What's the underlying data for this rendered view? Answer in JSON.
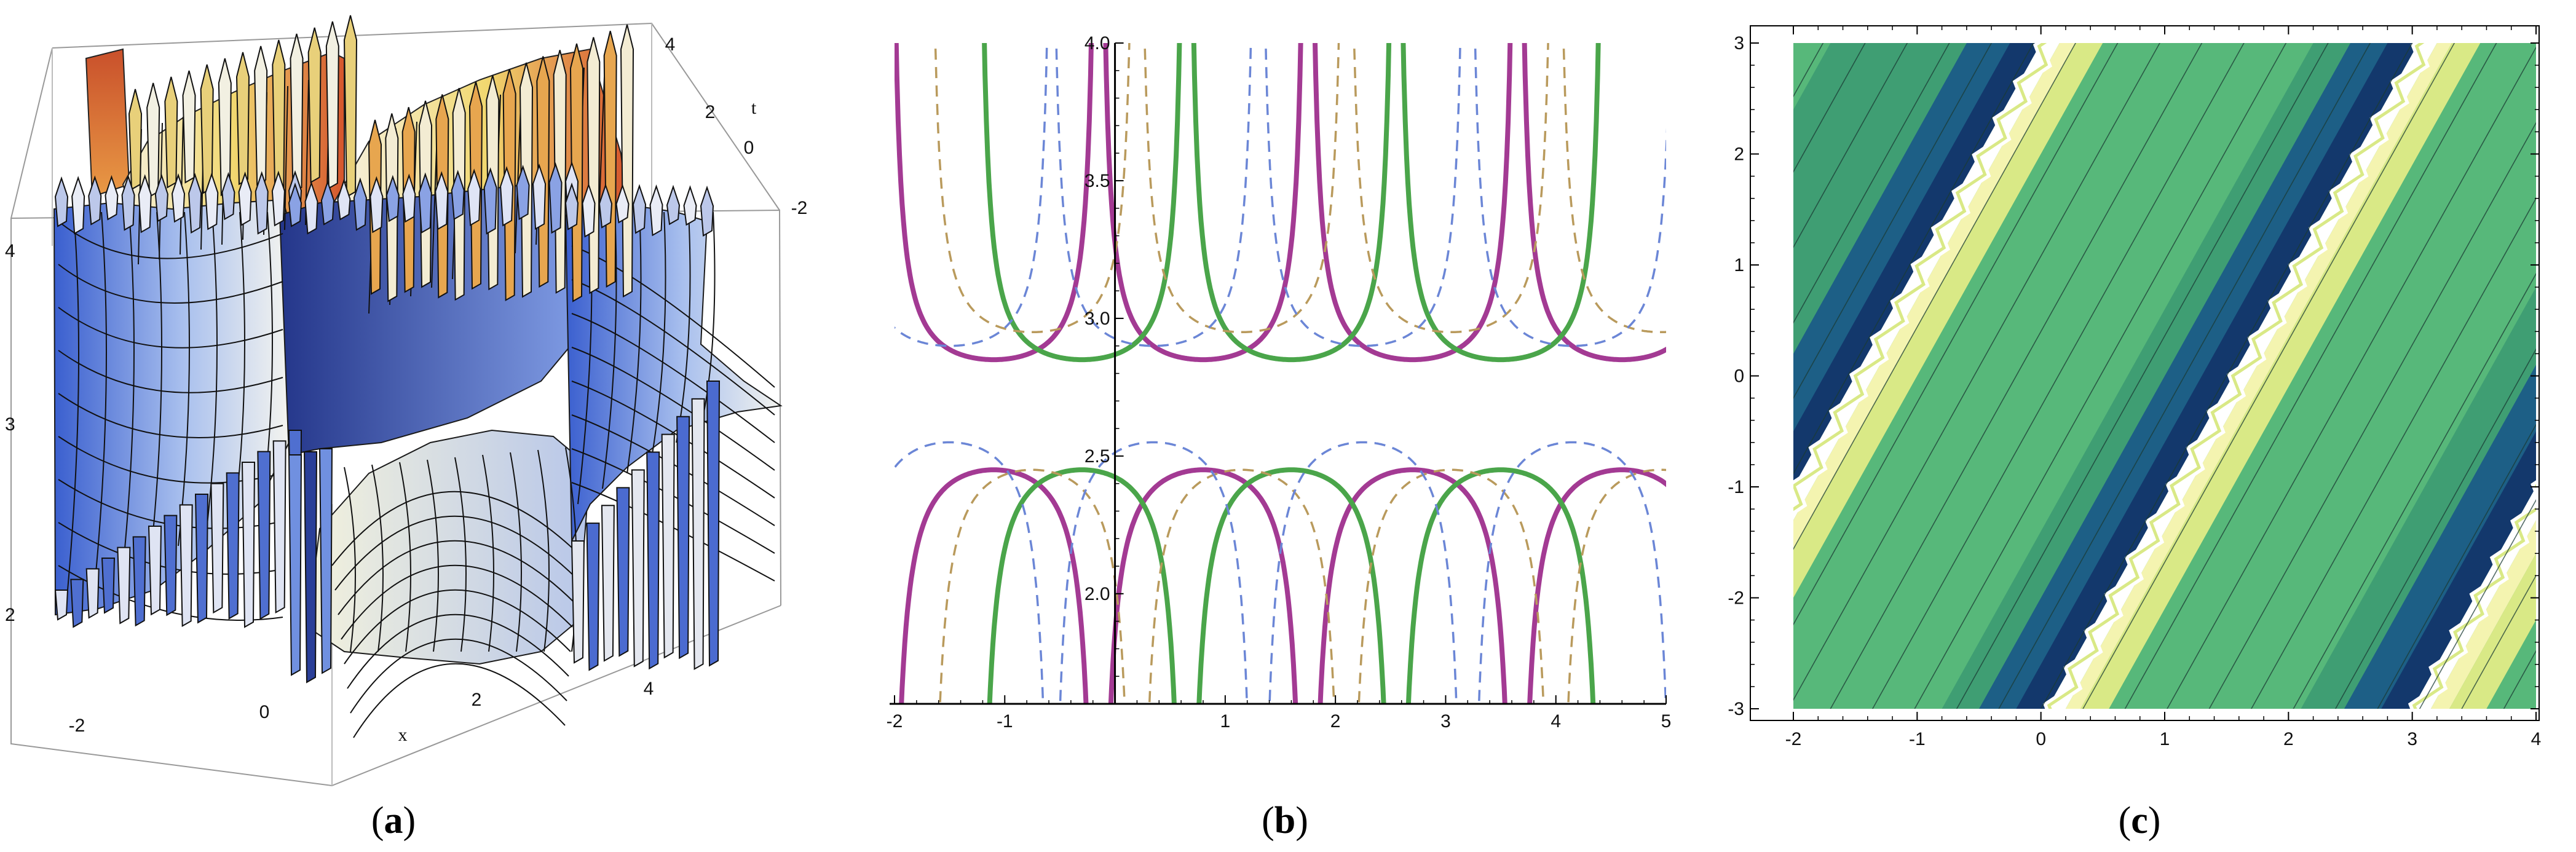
{
  "panels": {
    "a": {
      "label": "(a)",
      "bold_letter": "a"
    },
    "b": {
      "label": "(b)",
      "bold_letter": "b"
    },
    "c": {
      "label": "(c)",
      "bold_letter": "c"
    }
  },
  "chart_data": [
    {
      "id": "a",
      "type": "surface3d",
      "title": "",
      "xlabel": "x",
      "tlabel": "t",
      "x_ticks": [
        "-2",
        "0",
        "2",
        "4"
      ],
      "t_ticks": [
        "4",
        "2",
        "0",
        "-2"
      ],
      "z_ticks": [
        "4",
        "3",
        "2"
      ],
      "x_range": [
        -2,
        5
      ],
      "t_range": [
        -2,
        4
      ],
      "z_range": [
        1.5,
        4
      ],
      "colors": {
        "cool": "#5f7fd6",
        "light": "#f3f3f0",
        "warm": "#e0733a",
        "hot": "#b8432a"
      }
    },
    {
      "id": "b",
      "type": "line",
      "title": "",
      "x_ticks": [
        "-2",
        "-1",
        "1",
        "2",
        "3",
        "4",
        "5"
      ],
      "y_ticks": [
        "2.0",
        "2.5",
        "3.0",
        "3.5",
        "4.0"
      ],
      "xlim": [
        -2,
        5
      ],
      "ylim": [
        1.6,
        4.0
      ],
      "series": [
        {
          "style": "solid",
          "color": "#a33a93",
          "lambda": 0.55,
          "base": 2.85,
          "side": "above",
          "period": 1.9,
          "centers": [
            -1.1,
            0.8,
            2.7,
            4.6
          ]
        },
        {
          "style": "solid",
          "color": "#a33a93",
          "lambda": 0.55,
          "base": 2.45,
          "side": "below",
          "period": 1.9,
          "centers": [
            -1.1,
            0.8,
            2.7,
            4.6
          ]
        },
        {
          "style": "solid",
          "color": "#4aa54a",
          "lambda": 0.55,
          "base": 2.85,
          "side": "above",
          "period": 1.9,
          "centers": [
            -0.3,
            1.6,
            3.5
          ]
        },
        {
          "style": "solid",
          "color": "#4aa54a",
          "lambda": 0.55,
          "base": 2.45,
          "side": "below",
          "period": 1.9,
          "centers": [
            -0.3,
            1.6,
            3.5
          ]
        },
        {
          "style": "dashed",
          "color": "#b99a5c",
          "lambda": 0.55,
          "base": 2.95,
          "side": "above",
          "period": 1.9,
          "centers": [
            -0.75,
            1.15,
            3.05,
            4.95
          ]
        },
        {
          "style": "dashed",
          "color": "#b99a5c",
          "lambda": 0.55,
          "base": 2.45,
          "side": "below",
          "period": 1.9,
          "centers": [
            -0.75,
            1.15,
            3.05,
            4.95
          ]
        },
        {
          "style": "dashed",
          "color": "#6b86d6",
          "lambda": 0.55,
          "base": 2.9,
          "side": "above",
          "period": 1.9,
          "centers": [
            -1.5,
            0.35,
            2.25,
            4.15
          ]
        },
        {
          "style": "dashed",
          "color": "#6b86d6",
          "lambda": 0.55,
          "base": 2.55,
          "side": "below",
          "period": 1.9,
          "centers": [
            -1.5,
            0.35,
            2.25,
            4.15
          ]
        }
      ]
    },
    {
      "id": "c",
      "type": "contour",
      "title": "",
      "x_ticks": [
        "-2",
        "-1",
        "0",
        "1",
        "2",
        "3",
        "4"
      ],
      "y_ticks": [
        "3",
        "2",
        "1",
        "0",
        "-1",
        "-2",
        "-3"
      ],
      "xlim": [
        -2,
        4
      ],
      "ylim": [
        -3,
        3
      ],
      "colors": {
        "base": "#3f9e73",
        "mid": "#57b87a",
        "dark": "#1d5f86",
        "navy": "#13386c",
        "light": "#d9e986",
        "yellow": "#f4f4b0",
        "white": "#ffffff"
      }
    }
  ]
}
